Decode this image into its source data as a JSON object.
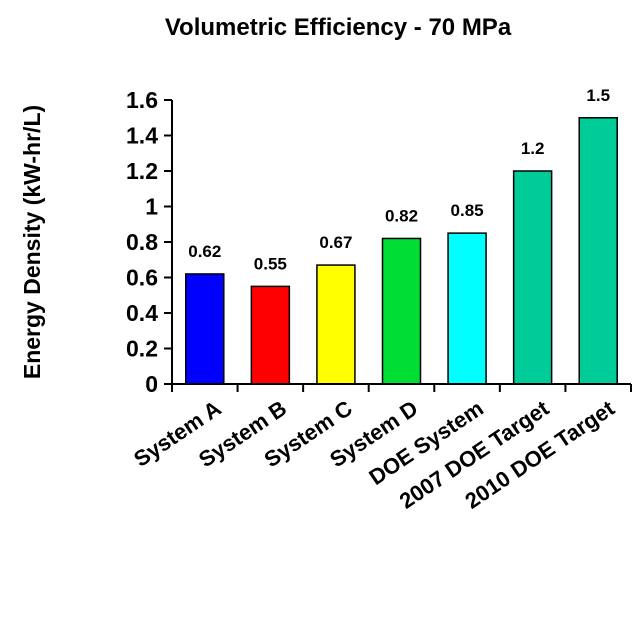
{
  "chart_data": {
    "type": "bar",
    "title": "Volumetric Efficiency - 70 MPa",
    "ylabel": "Energy Density (kW-hr/L)",
    "xlabel": "",
    "ylim": [
      0,
      1.6
    ],
    "yticks": [
      0,
      0.2,
      0.4,
      0.6,
      0.8,
      1,
      1.2,
      1.4,
      1.6
    ],
    "ytick_labels": [
      "0",
      "0.2",
      "0.4",
      "0.6",
      "0.8",
      "1",
      "1.2",
      "1.4",
      "1.6"
    ],
    "grid": false,
    "categories": [
      "System A",
      "System B",
      "System C",
      "System D",
      "DOE System",
      "2007 DOE Target",
      "2010 DOE Target"
    ],
    "values": [
      0.62,
      0.55,
      0.67,
      0.82,
      0.85,
      1.2,
      1.5
    ],
    "value_labels": [
      "0.62",
      "0.55",
      "0.67",
      "0.82",
      "0.85",
      "1.2",
      "1.5"
    ],
    "colors": [
      "#0000ff",
      "#ff0000",
      "#ffff00",
      "#00dd33",
      "#00ffff",
      "#00cc99",
      "#00cc99"
    ]
  }
}
